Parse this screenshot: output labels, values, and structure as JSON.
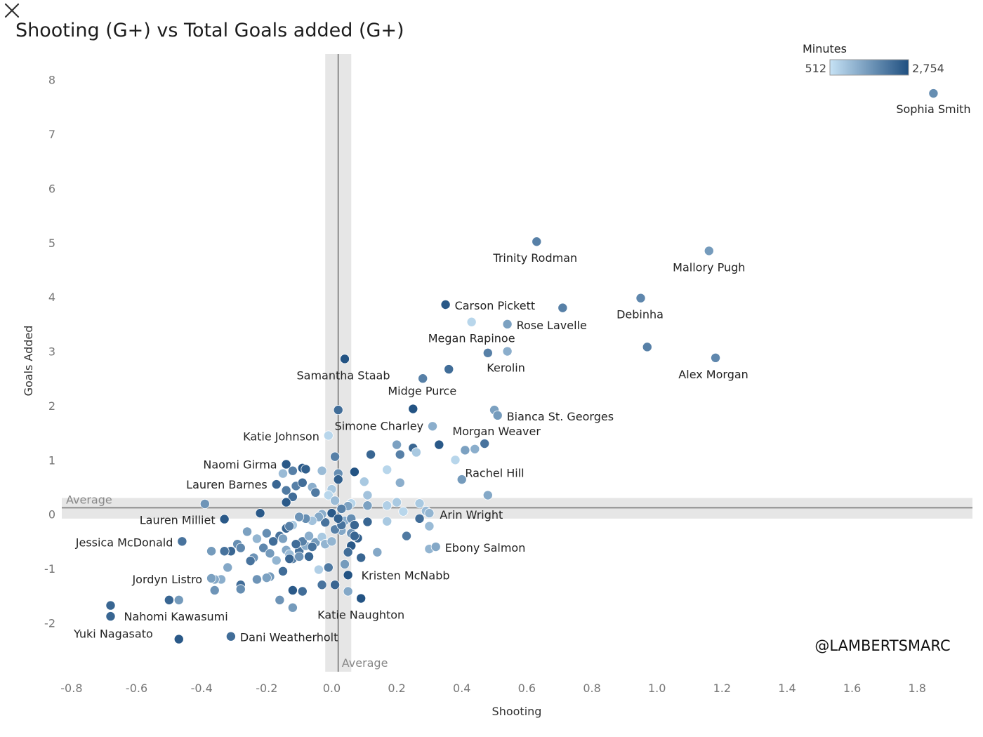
{
  "window": {
    "close_icon": "close-icon"
  },
  "chart_data": {
    "type": "scatter",
    "title": "Shooting (G+) vs Total Goals added (G+)",
    "xlabel": "Shooting",
    "ylabel": "Goals Added",
    "xlim": [
      -0.83,
      1.97
    ],
    "ylim": [
      -2.9,
      8.5
    ],
    "x_ticks": [
      "-0.8",
      "-0.6",
      "-0.4",
      "-0.2",
      "0.0",
      "0.2",
      "0.4",
      "0.6",
      "0.8",
      "1.0",
      "1.2",
      "1.4",
      "1.6",
      "1.8"
    ],
    "y_ticks": [
      "8",
      "7",
      "6",
      "5",
      "4",
      "3",
      "2",
      "1",
      "0",
      "-1",
      "-2"
    ],
    "grid": false,
    "average": {
      "x": 0.02,
      "y": 0.12,
      "label_x": "Average",
      "label_y": "Average",
      "band_x": [
        -0.02,
        0.06
      ],
      "band_y": [
        -0.08,
        0.3
      ]
    },
    "color_legend": {
      "title": "Minutes",
      "min_label": "512",
      "max_label": "2,754",
      "min": 512,
      "max": 2754,
      "color_low": "#c6e2f5",
      "color_high": "#1f4f80",
      "position": "top-right"
    },
    "watermark": "@LAMBERTSMARC",
    "labeled_points": [
      {
        "name": "Sophia Smith",
        "x": 1.85,
        "y": 7.75,
        "minutes": 1800
      },
      {
        "name": "Trinity Rodman",
        "x": 0.63,
        "y": 5.02,
        "minutes": 2000
      },
      {
        "name": "Mallory Pugh",
        "x": 1.16,
        "y": 4.85,
        "minutes": 1600
      },
      {
        "name": "Debinha",
        "x": 0.95,
        "y": 3.98,
        "minutes": 1900
      },
      {
        "name": "Carson Pickett",
        "x": 0.35,
        "y": 3.86,
        "minutes": 2600
      },
      {
        "name": "Rose Lavelle",
        "x": 0.54,
        "y": 3.5,
        "minutes": 1500
      },
      {
        "name": "Megan Rapinoe",
        "x": 0.43,
        "y": 3.54,
        "minutes": 700
      },
      {
        "name": "Kerolin",
        "x": 0.54,
        "y": 3.0,
        "minutes": 1300
      },
      {
        "name": "Alex Morgan",
        "x": 1.18,
        "y": 2.88,
        "minutes": 1900
      },
      {
        "name": "Samantha Staab",
        "x": 0.04,
        "y": 2.86,
        "minutes": 2700
      },
      {
        "name": "Midge Purce",
        "x": 0.25,
        "y": 1.94,
        "minutes": 2700
      },
      {
        "name": "Bianca St. Georges",
        "x": 0.51,
        "y": 1.82,
        "minutes": 1600
      },
      {
        "name": "Simone Charley",
        "x": 0.31,
        "y": 1.62,
        "minutes": 1300
      },
      {
        "name": "Morgan Weaver",
        "x": 0.47,
        "y": 1.3,
        "minutes": 2200
      },
      {
        "name": "Katie Johnson",
        "x": -0.01,
        "y": 1.45,
        "minutes": 700
      },
      {
        "name": "Rachel Hill",
        "x": 0.38,
        "y": 1.0,
        "minutes": 700
      },
      {
        "name": "Naomi Girma",
        "x": -0.14,
        "y": 0.92,
        "minutes": 2600
      },
      {
        "name": "Lauren Barnes",
        "x": -0.17,
        "y": 0.55,
        "minutes": 2400
      },
      {
        "name": "Arin Wright",
        "x": 0.3,
        "y": 0.02,
        "minutes": 1200
      },
      {
        "name": "Lauren Milliet",
        "x": -0.33,
        "y": -0.09,
        "minutes": 2600
      },
      {
        "name": "Jessica McDonald",
        "x": -0.46,
        "y": -0.5,
        "minutes": 2200
      },
      {
        "name": "Ebony Salmon",
        "x": 0.32,
        "y": -0.6,
        "minutes": 1400
      },
      {
        "name": "Kristen McNabb",
        "x": 0.05,
        "y": -1.12,
        "minutes": 2700
      },
      {
        "name": "Jordyn Listro",
        "x": -0.37,
        "y": -1.18,
        "minutes": 1500
      },
      {
        "name": "Katie Naughton",
        "x": 0.09,
        "y": -1.55,
        "minutes": 2700
      },
      {
        "name": "Nahomi Kawasumi",
        "x": -0.68,
        "y": -1.88,
        "minutes": 2400
      },
      {
        "name": "Yuki Nagasato",
        "x": -0.47,
        "y": -2.3,
        "minutes": 2600
      },
      {
        "name": "Dani Weatherholt",
        "x": -0.31,
        "y": -2.25,
        "minutes": 2300
      }
    ],
    "other_points": [
      [
        0.71,
        3.8,
        2000
      ],
      [
        0.97,
        3.08,
        2000
      ],
      [
        0.48,
        2.97,
        2000
      ],
      [
        0.36,
        2.67,
        2300
      ],
      [
        0.28,
        2.5,
        2000
      ],
      [
        0.02,
        1.92,
        2300
      ],
      [
        0.5,
        1.92,
        1500
      ],
      [
        -0.68,
        -1.68,
        2400
      ],
      [
        0.12,
        1.1,
        2400
      ],
      [
        0.21,
        1.1,
        2000
      ],
      [
        0.33,
        1.28,
        2600
      ],
      [
        0.2,
        1.28,
        1500
      ],
      [
        0.25,
        1.22,
        2400
      ],
      [
        0.26,
        1.14,
        900
      ],
      [
        0.44,
        1.2,
        1300
      ],
      [
        0.41,
        1.18,
        1500
      ],
      [
        0.01,
        1.06,
        2000
      ],
      [
        0.4,
        0.64,
        1600
      ],
      [
        0.48,
        0.35,
        1400
      ],
      [
        0.17,
        0.82,
        700
      ],
      [
        0.21,
        0.58,
        1300
      ],
      [
        0.1,
        0.6,
        900
      ],
      [
        0.11,
        0.35,
        1000
      ],
      [
        0.07,
        0.78,
        2700
      ],
      [
        -0.12,
        0.8,
        2000
      ],
      [
        -0.09,
        0.85,
        2600
      ],
      [
        -0.08,
        0.83,
        2500
      ],
      [
        -0.03,
        0.8,
        1100
      ],
      [
        -0.15,
        0.75,
        1100
      ],
      [
        -0.14,
        0.44,
        2100
      ],
      [
        -0.12,
        0.32,
        2300
      ],
      [
        -0.14,
        0.22,
        2600
      ],
      [
        -0.11,
        0.52,
        2000
      ],
      [
        -0.09,
        0.58,
        2300
      ],
      [
        -0.06,
        0.5,
        1300
      ],
      [
        -0.05,
        0.4,
        2100
      ],
      [
        -0.39,
        0.19,
        1700
      ],
      [
        -0.22,
        0.02,
        2600
      ],
      [
        0.02,
        0.75,
        1800
      ],
      [
        0.02,
        0.64,
        2500
      ],
      [
        0.0,
        0.46,
        900
      ],
      [
        -0.01,
        0.35,
        700
      ],
      [
        0.01,
        0.25,
        1100
      ],
      [
        0.06,
        0.2,
        700
      ],
      [
        0.05,
        0.15,
        1500
      ],
      [
        0.03,
        0.1,
        2000
      ],
      [
        0.11,
        0.16,
        1500
      ],
      [
        0.17,
        0.16,
        800
      ],
      [
        0.2,
        0.22,
        900
      ],
      [
        0.22,
        0.05,
        700
      ],
      [
        0.27,
        0.2,
        900
      ],
      [
        0.29,
        0.06,
        1100
      ],
      [
        0.3,
        -0.22,
        1100
      ],
      [
        0.27,
        -0.08,
        2300
      ],
      [
        0.23,
        -0.4,
        2100
      ],
      [
        0.3,
        -0.64,
        1200
      ],
      [
        0.17,
        -0.13,
        900
      ],
      [
        0.14,
        -0.7,
        1400
      ],
      [
        0.11,
        -0.14,
        2400
      ],
      [
        0.09,
        -0.8,
        2400
      ],
      [
        0.08,
        -0.44,
        2500
      ],
      [
        0.06,
        -0.58,
        2600
      ],
      [
        0.05,
        -0.7,
        2300
      ],
      [
        0.04,
        -0.12,
        1300
      ],
      [
        0.06,
        -0.08,
        1800
      ],
      [
        0.03,
        -0.3,
        1400
      ],
      [
        0.01,
        -0.28,
        2000
      ],
      [
        0.0,
        0.02,
        2600
      ],
      [
        -0.02,
        -0.15,
        2200
      ],
      [
        -0.03,
        0.0,
        1300
      ],
      [
        -0.04,
        -0.05,
        1400
      ],
      [
        -0.06,
        -0.12,
        1000
      ],
      [
        -0.08,
        -0.08,
        1800
      ],
      [
        -0.1,
        -0.05,
        1700
      ],
      [
        -0.12,
        -0.2,
        900
      ],
      [
        -0.14,
        -0.26,
        2400
      ],
      [
        -0.16,
        -0.4,
        2200
      ],
      [
        -0.18,
        -0.5,
        2300
      ],
      [
        -0.2,
        -0.35,
        1800
      ],
      [
        -0.23,
        -0.45,
        1200
      ],
      [
        -0.26,
        -0.32,
        1500
      ],
      [
        -0.29,
        -0.55,
        1800
      ],
      [
        -0.31,
        -0.68,
        2400
      ],
      [
        -0.33,
        -0.68,
        2200
      ],
      [
        -0.37,
        -0.68,
        1600
      ],
      [
        -0.28,
        -0.62,
        1900
      ],
      [
        -0.24,
        -0.8,
        1700
      ],
      [
        -0.21,
        -0.62,
        1900
      ],
      [
        -0.19,
        -0.72,
        1600
      ],
      [
        -0.17,
        -0.85,
        1200
      ],
      [
        -0.14,
        -0.66,
        1400
      ],
      [
        -0.12,
        -0.82,
        2000
      ],
      [
        -0.1,
        -0.68,
        2200
      ],
      [
        -0.08,
        -0.58,
        1300
      ],
      [
        -0.09,
        -0.5,
        2000
      ],
      [
        -0.07,
        -0.4,
        1300
      ],
      [
        -0.05,
        -0.52,
        1600
      ],
      [
        -0.03,
        -0.42,
        900
      ],
      [
        -0.02,
        -0.55,
        1200
      ],
      [
        -0.04,
        -1.02,
        800
      ],
      [
        -0.01,
        -0.98,
        2100
      ],
      [
        0.04,
        -0.92,
        1600
      ],
      [
        0.05,
        -1.42,
        1400
      ],
      [
        -0.03,
        -1.3,
        2200
      ],
      [
        0.01,
        -1.3,
        2400
      ],
      [
        -0.12,
        -1.4,
        2600
      ],
      [
        -0.09,
        -1.42,
        2300
      ],
      [
        -0.15,
        -1.05,
        2300
      ],
      [
        -0.19,
        -1.15,
        1600
      ],
      [
        -0.2,
        -1.17,
        1500
      ],
      [
        -0.23,
        -1.2,
        1700
      ],
      [
        -0.28,
        -1.3,
        2300
      ],
      [
        -0.28,
        -1.38,
        1800
      ],
      [
        -0.32,
        -0.98,
        1400
      ],
      [
        -0.34,
        -1.2,
        1300
      ],
      [
        -0.36,
        -1.2,
        1400
      ],
      [
        -0.36,
        -1.4,
        1700
      ],
      [
        -0.16,
        -1.58,
        1700
      ],
      [
        -0.12,
        -1.72,
        1600
      ],
      [
        -0.47,
        -1.58,
        1600
      ],
      [
        -0.5,
        -1.58,
        2400
      ],
      [
        -0.13,
        -0.22,
        2000
      ],
      [
        -0.15,
        -0.45,
        1500
      ],
      [
        -0.11,
        -0.55,
        2300
      ],
      [
        0.06,
        -0.35,
        1700
      ],
      [
        0.07,
        -0.2,
        2400
      ],
      [
        0.07,
        -0.4,
        2400
      ],
      [
        0.03,
        -0.2,
        2200
      ],
      [
        -0.06,
        -0.6,
        2200
      ],
      [
        -0.1,
        -0.78,
        1700
      ],
      [
        0.0,
        -0.5,
        1200
      ],
      [
        0.02,
        -0.08,
        2500
      ],
      [
        -0.13,
        -0.74,
        1100
      ],
      [
        -0.13,
        -0.82,
        2400
      ],
      [
        -0.25,
        -0.86,
        2200
      ],
      [
        -0.07,
        -0.78,
        2400
      ]
    ]
  }
}
